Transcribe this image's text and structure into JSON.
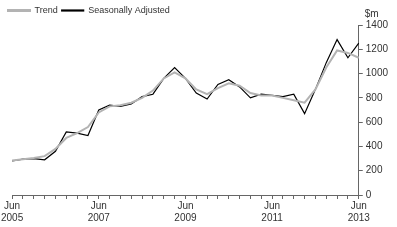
{
  "chart_data": {
    "type": "line",
    "ylabel": "$m",
    "categories": [
      "Jun 2005",
      null,
      null,
      null,
      null,
      null,
      null,
      null,
      "Jun 2007",
      null,
      null,
      null,
      null,
      null,
      null,
      null,
      "Jun 2009",
      null,
      null,
      null,
      null,
      null,
      null,
      null,
      "Jun 2011",
      null,
      null,
      null,
      null,
      null,
      null,
      null,
      "Jun 2013"
    ],
    "series": [
      {
        "name": "Seasonally Adjusted",
        "color": "#000000",
        "values": [
          280,
          295,
          300,
          290,
          360,
          520,
          510,
          490,
          700,
          740,
          730,
          750,
          810,
          830,
          960,
          1050,
          960,
          840,
          790,
          910,
          950,
          890,
          800,
          830,
          820,
          810,
          830,
          670,
          870,
          1090,
          1280,
          1130,
          1250
        ]
      },
      {
        "name": "Trend",
        "color": "#b3b3b3",
        "values": [
          285,
          295,
          305,
          320,
          380,
          470,
          510,
          560,
          680,
          730,
          740,
          760,
          800,
          860,
          960,
          1010,
          960,
          870,
          830,
          880,
          920,
          900,
          840,
          820,
          820,
          800,
          780,
          760,
          870,
          1050,
          1190,
          1170,
          1130
        ]
      }
    ],
    "ylim": [
      0,
      1400
    ],
    "yticks": [
      0,
      200,
      400,
      600,
      800,
      1000,
      1200,
      1400
    ],
    "grid": false,
    "legend": "upper left"
  }
}
